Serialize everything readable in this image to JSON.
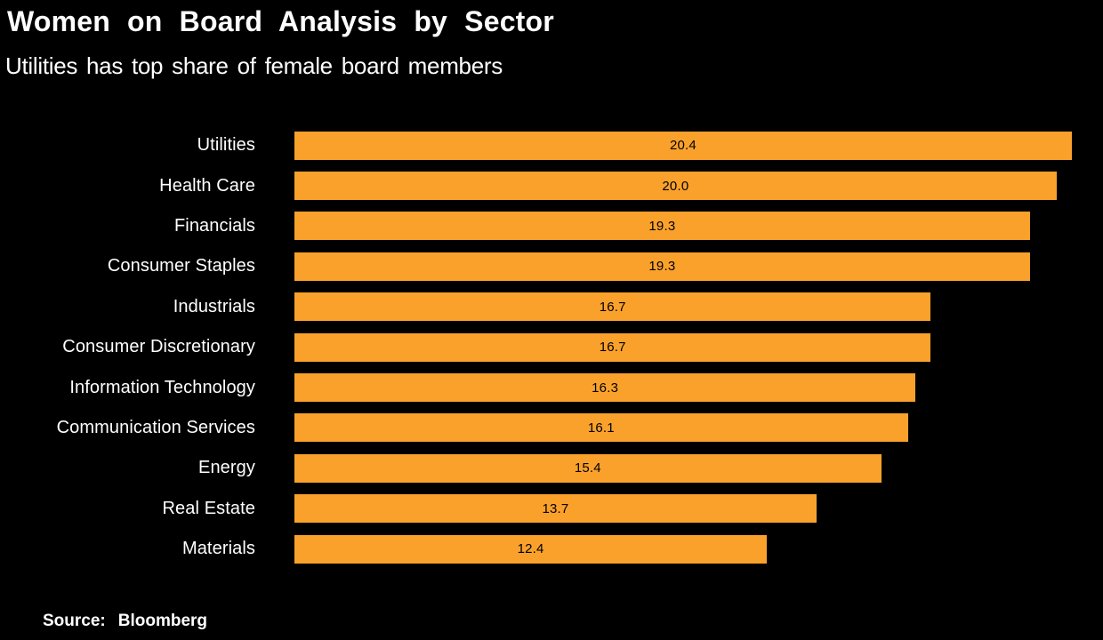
{
  "header": {
    "title": "Women on Board Analysis by Sector",
    "subtitle": "Utilities has top share of female board members"
  },
  "source": {
    "label": "Source:",
    "value": "Bloomberg"
  },
  "colors": {
    "background": "#000000",
    "bar": "#FAA12C",
    "title_text": "#FFFFFF",
    "category_text": "#FFFFFF",
    "value_text": "#000000"
  },
  "chart_data": {
    "type": "bar",
    "orientation": "horizontal",
    "title": "Women on Board Analysis by Sector",
    "subtitle": "Utilities has top share of female board members",
    "xlabel": "",
    "ylabel": "",
    "xlim": [
      0,
      21.2
    ],
    "grid": false,
    "legend": false,
    "value_label_position": "center",
    "sort_order": "descending",
    "categories": [
      "Utilities",
      "Health Care",
      "Financials",
      "Consumer Staples",
      "Industrials",
      "Consumer Discretionary",
      "Information Technology",
      "Communication Services",
      "Energy",
      "Real Estate",
      "Materials"
    ],
    "values": [
      20.4,
      20.0,
      19.3,
      19.3,
      16.7,
      16.7,
      16.3,
      16.1,
      15.4,
      13.7,
      12.4
    ],
    "value_labels": [
      "20.4",
      "20.0",
      "19.3",
      "19.3",
      "16.7",
      "16.7",
      "16.3",
      "16.1",
      "15.4",
      "13.7",
      "12.4"
    ]
  }
}
